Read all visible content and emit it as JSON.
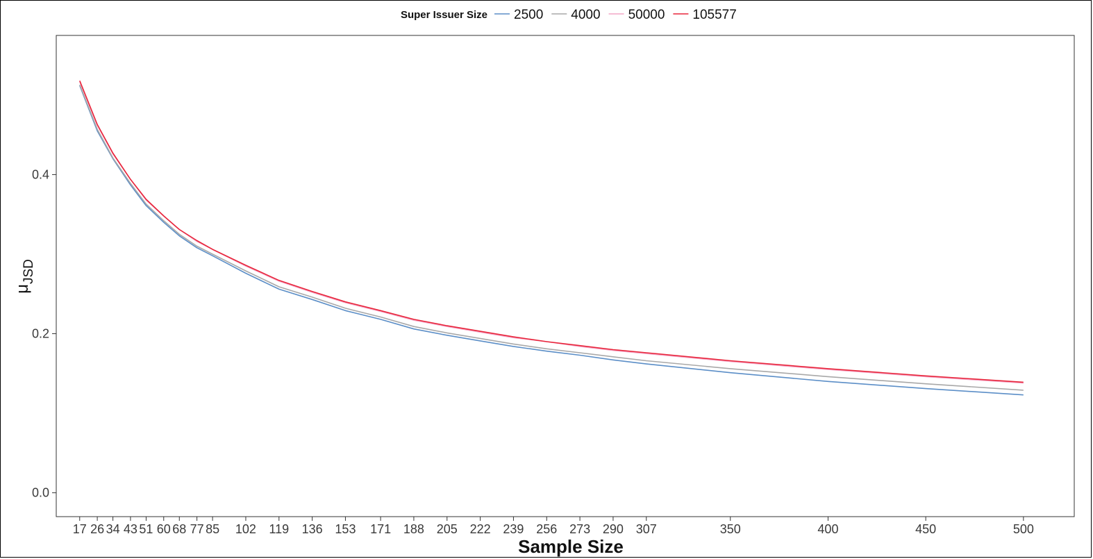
{
  "chart_data": {
    "type": "line",
    "xlabel": "Sample Size",
    "ylabel": "μ",
    "ylabel_sub": "JSD",
    "legend_title": "Super Issuer Size",
    "legend_position": "top",
    "grid": false,
    "xlim": [
      5,
      526
    ],
    "ylim": [
      -0.03,
      0.575
    ],
    "x_ticks": [
      17,
      26,
      34,
      43,
      51,
      60,
      68,
      77,
      85,
      102,
      119,
      136,
      153,
      171,
      188,
      205,
      222,
      239,
      256,
      273,
      290,
      307,
      350,
      400,
      450,
      500
    ],
    "x_tick_labels": [
      "17",
      "26",
      "34",
      "43",
      "51",
      "60",
      "68",
      "77",
      "85",
      "102",
      "119",
      "136",
      "153",
      "171",
      "188",
      "205",
      "222",
      "239",
      "256",
      "273",
      "290",
      "307",
      "350",
      "400",
      "450",
      "500"
    ],
    "y_ticks": [
      0.0,
      0.2,
      0.4
    ],
    "y_tick_labels": [
      "0.0",
      "0.2",
      "0.4"
    ],
    "x": [
      17,
      26,
      34,
      43,
      51,
      60,
      68,
      77,
      85,
      102,
      119,
      136,
      153,
      171,
      188,
      205,
      222,
      239,
      256,
      273,
      290,
      307,
      350,
      400,
      450,
      500
    ],
    "series": [
      {
        "name": "2500",
        "color": "#5b8ec7",
        "values": [
          0.512,
          0.455,
          0.42,
          0.387,
          0.361,
          0.34,
          0.323,
          0.308,
          0.298,
          0.276,
          0.256,
          0.243,
          0.229,
          0.218,
          0.206,
          0.198,
          0.191,
          0.184,
          0.178,
          0.173,
          0.167,
          0.162,
          0.151,
          0.14,
          0.131,
          0.123
        ]
      },
      {
        "name": "4000",
        "color": "#a8a8a8",
        "values": [
          0.513,
          0.457,
          0.421,
          0.389,
          0.363,
          0.342,
          0.325,
          0.31,
          0.3,
          0.279,
          0.259,
          0.246,
          0.232,
          0.221,
          0.209,
          0.201,
          0.194,
          0.187,
          0.181,
          0.176,
          0.171,
          0.166,
          0.156,
          0.146,
          0.137,
          0.129
        ]
      },
      {
        "name": "50000",
        "color": "#f4a6c6",
        "values": [
          0.517,
          0.462,
          0.426,
          0.394,
          0.368,
          0.348,
          0.331,
          0.316,
          0.306,
          0.285,
          0.266,
          0.252,
          0.239,
          0.228,
          0.217,
          0.209,
          0.202,
          0.195,
          0.19,
          0.184,
          0.179,
          0.175,
          0.165,
          0.155,
          0.146,
          0.138
        ]
      },
      {
        "name": "105577",
        "color": "#e8253a",
        "values": [
          0.518,
          0.463,
          0.427,
          0.394,
          0.369,
          0.348,
          0.331,
          0.317,
          0.306,
          0.286,
          0.267,
          0.253,
          0.24,
          0.229,
          0.218,
          0.21,
          0.203,
          0.196,
          0.19,
          0.185,
          0.18,
          0.176,
          0.166,
          0.156,
          0.147,
          0.139
        ]
      }
    ]
  }
}
